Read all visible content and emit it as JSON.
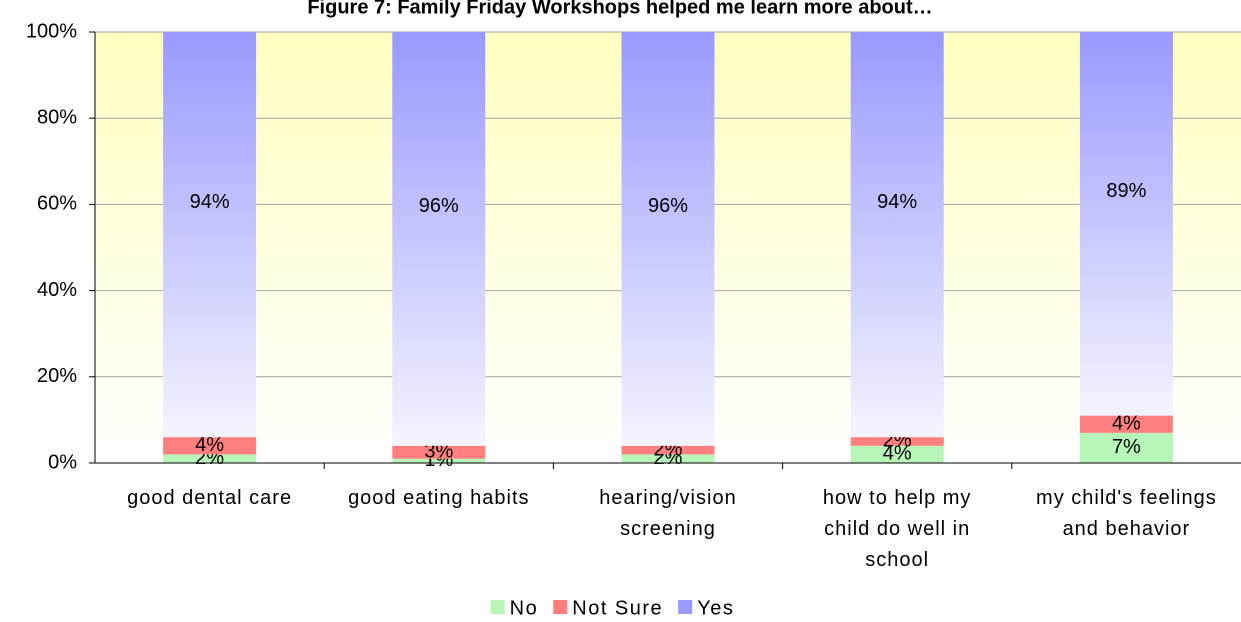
{
  "chart_data": {
    "type": "stacked_bar",
    "title": "Figure 7: Family Friday Workshops helped me learn more about…",
    "categories": [
      "good dental care",
      "good eating habits",
      "hearing/vision screening",
      "how to help my child do well in school",
      "my child's feelings and behavior"
    ],
    "series": [
      {
        "name": "No",
        "color": "#b8f5b8",
        "values": [
          2,
          1,
          2,
          4,
          7
        ],
        "value_labels": [
          "2%",
          "1%",
          "2%",
          "4%",
          "7%"
        ]
      },
      {
        "name": "Not Sure",
        "color": "#ff7f7f",
        "values": [
          4,
          3,
          2,
          2,
          4
        ],
        "value_labels": [
          "4%",
          "3%",
          "2%",
          "2%",
          "4%"
        ]
      },
      {
        "name": "Yes",
        "color": "#9999ff",
        "values": [
          94,
          96,
          96,
          94,
          89
        ],
        "value_labels": [
          "94%",
          "96%",
          "96%",
          "94%",
          "89%"
        ]
      }
    ],
    "ylim": [
      0,
      100
    ],
    "yticks": [
      {
        "value": 0,
        "label": "0%"
      },
      {
        "value": 20,
        "label": "20%"
      },
      {
        "value": 40,
        "label": "40%"
      },
      {
        "value": 60,
        "label": "60%"
      },
      {
        "value": 80,
        "label": "80%"
      },
      {
        "value": 100,
        "label": "100%"
      }
    ],
    "grid": true,
    "legend": "bottom"
  }
}
